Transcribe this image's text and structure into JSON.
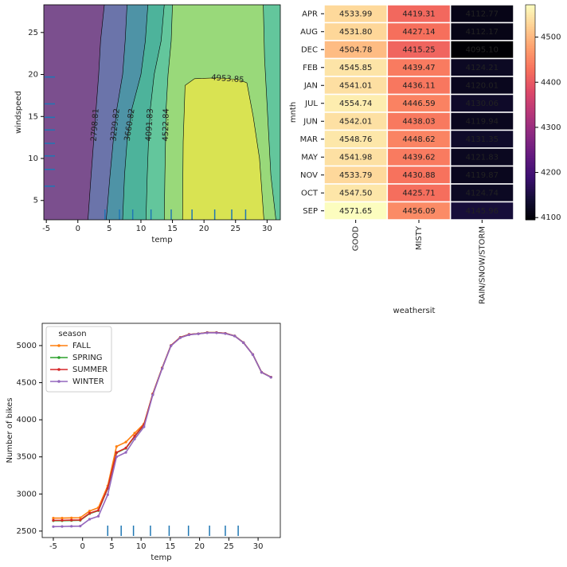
{
  "chart_data": [
    {
      "type": "contour",
      "xlabel": "temp",
      "ylabel": "windspeed",
      "xlim": [
        -5.4,
        32.1
      ],
      "ylim": [
        2.7,
        28.3
      ],
      "xticks": [
        -5,
        0,
        5,
        10,
        15,
        20,
        25,
        30
      ],
      "yticks": [
        5,
        10,
        15,
        20,
        25
      ],
      "base_color": "#7b4f8e",
      "lines": [
        {
          "level": 2798.81,
          "color": "#6b74aa",
          "temp": [
            4.2,
            3.6,
            3.3,
            2.9,
            2.5,
            2.1,
            1.6
          ],
          "windspeed": [
            28.3,
            24,
            20,
            16,
            12,
            8,
            2.7
          ]
        },
        {
          "level": 3229.82,
          "color": "#4e93a6",
          "temp": [
            7.8,
            7.5,
            7.1,
            6.2,
            5.6,
            5.1,
            4.5
          ],
          "windspeed": [
            28.3,
            24,
            20,
            16,
            12,
            8,
            2.7
          ]
        },
        {
          "level": 3660.82,
          "color": "#4db39b",
          "temp": [
            11.1,
            10.7,
            10.0,
            8.6,
            7.8,
            7.4,
            7.1
          ],
          "windspeed": [
            28.3,
            24,
            20,
            16,
            12,
            8,
            2.7
          ]
        },
        {
          "level": 4091.83,
          "color": "#63c69c",
          "temp": [
            13.7,
            13.2,
            12.1,
            11.5,
            11.2,
            11.0,
            10.8
          ],
          "windspeed": [
            28.3,
            24,
            20,
            16,
            12,
            8,
            2.7
          ]
        },
        {
          "level": 4522.84,
          "color": "#99d97a",
          "temp": [
            15.0,
            14.8,
            14.3,
            14.0,
            13.9,
            13.8,
            13.7
          ],
          "windspeed": [
            28.3,
            24,
            20,
            16,
            12,
            8,
            2.7
          ]
        },
        {
          "level": 4953.85,
          "color": "#d9e352",
          "temp": [
            16.6,
            16.7,
            17.0,
            18.5,
            22,
            25.5,
            26.8,
            27.8,
            28.8,
            29.5
          ],
          "windspeed": [
            2.7,
            12,
            18.7,
            19.5,
            19.6,
            19.4,
            19.0,
            15,
            10,
            2.7
          ]
        },
        {
          "level": 4522.84,
          "color": "#63c69c",
          "temp": [
            29.4,
            29.6,
            30.1,
            30.6,
            31.4
          ],
          "windspeed": [
            28.3,
            22,
            15,
            8,
            2.7
          ]
        }
      ],
      "rug_color": "#1f77b4",
      "rug_x": [
        4.3,
        6.6,
        8.7,
        11.6,
        14.8,
        18.1,
        21.7,
        24.4,
        26.6
      ],
      "rug_y": [
        19.7,
        16.5,
        14.9,
        13.4,
        11.8,
        10.3,
        8.7,
        6.7
      ]
    },
    {
      "type": "heatmap",
      "xlabel": "weathersit",
      "ylabel": "mnth",
      "cmap": "magma",
      "columns": [
        "GOOD",
        "MISTY",
        "RAIN/SNOW/STORM"
      ],
      "rows": [
        "APR",
        "AUG",
        "DEC",
        "FEB",
        "JAN",
        "JUL",
        "JUN",
        "MAR",
        "MAY",
        "NOV",
        "OCT",
        "SEP"
      ],
      "values": [
        [
          4533.99,
          4419.31,
          4112.77
        ],
        [
          4531.8,
          4427.14,
          4112.17
        ],
        [
          4504.78,
          4415.25,
          4095.1
        ],
        [
          4545.85,
          4439.47,
          4124.21
        ],
        [
          4541.01,
          4436.11,
          4120.01
        ],
        [
          4554.74,
          4446.59,
          4130.06
        ],
        [
          4542.01,
          4438.03,
          4119.94
        ],
        [
          4548.76,
          4448.62,
          4131.35
        ],
        [
          4541.98,
          4439.62,
          4121.83
        ],
        [
          4533.79,
          4430.88,
          4119.87
        ],
        [
          4547.5,
          4425.71,
          4124.74
        ],
        [
          4571.65,
          4456.09,
          4145.96
        ]
      ],
      "value_labels": [
        [
          "4533.99",
          "4419.31",
          "4112.77"
        ],
        [
          "4531.80",
          "4427.14",
          "4112.17"
        ],
        [
          "4504.78",
          "4415.25",
          "4095.10"
        ],
        [
          "4545.85",
          "4439.47",
          "4124.21"
        ],
        [
          "4541.01",
          "4436.11",
          "4120.01"
        ],
        [
          "4554.74",
          "4446.59",
          "4130.06"
        ],
        [
          "4542.01",
          "4438.03",
          "4119.94"
        ],
        [
          "4548.76",
          "4448.62",
          "4131.35"
        ],
        [
          "4541.98",
          "4439.62",
          "4121.83"
        ],
        [
          "4533.79",
          "4430.88",
          "4119.87"
        ],
        [
          "4547.50",
          "4425.71",
          "4124.74"
        ],
        [
          "4571.65",
          "4456.09",
          "4145.96"
        ]
      ],
      "clim": [
        4095.1,
        4571.65
      ],
      "colorbar_ticks": [
        4100,
        4200,
        4300,
        4400,
        4500
      ]
    },
    {
      "type": "line",
      "xlabel": "temp",
      "ylabel": "Number of bikes",
      "legend_title": "season",
      "legend": "upper left",
      "x": [
        -5.0,
        -3.5,
        -1.9,
        -0.4,
        1.2,
        2.7,
        4.3,
        5.8,
        7.4,
        8.9,
        10.5,
        12.0,
        13.6,
        15.1,
        16.7,
        18.2,
        19.8,
        21.3,
        22.9,
        24.4,
        26.0,
        27.5,
        29.1,
        30.6,
        32.2
      ],
      "series": [
        {
          "name": "FALL",
          "color": "#ff7f0e",
          "values": [
            2675,
            2675,
            2678,
            2680,
            2770,
            2815,
            3110,
            3640,
            3700,
            3820,
            3945,
            4350,
            4700,
            5000,
            5110,
            5150,
            5160,
            5175,
            5175,
            5165,
            5130,
            5040,
            4880,
            4640,
            4575
          ]
        },
        {
          "name": "SPRING",
          "color": "#2ca02c",
          "values": [
            2640,
            2640,
            2643,
            2645,
            2735,
            2775,
            3075,
            3555,
            3615,
            3775,
            3932,
            4344,
            4695,
            5000,
            5110,
            5150,
            5160,
            5175,
            5175,
            5165,
            5130,
            5040,
            4880,
            4640,
            4575
          ]
        },
        {
          "name": "SUMMER",
          "color": "#d62728",
          "values": [
            2645,
            2645,
            2648,
            2650,
            2740,
            2780,
            3080,
            3560,
            3620,
            3780,
            3935,
            4345,
            4695,
            5000,
            5110,
            5150,
            5160,
            5175,
            5175,
            5165,
            5130,
            5040,
            4880,
            4640,
            4575
          ]
        },
        {
          "name": "WINTER",
          "color": "#9467bd",
          "values": [
            2560,
            2562,
            2565,
            2567,
            2660,
            2700,
            2990,
            3500,
            3560,
            3740,
            3905,
            4335,
            4690,
            4995,
            5105,
            5145,
            5158,
            5172,
            5172,
            5162,
            5128,
            5038,
            4878,
            4638,
            4572
          ]
        }
      ],
      "xlim": [
        -6.9,
        33.8
      ],
      "ylim": [
        2413,
        5300
      ],
      "xticks": [
        -5,
        0,
        5,
        10,
        15,
        20,
        25,
        30
      ],
      "yticks": [
        2500,
        3000,
        3500,
        4000,
        4500,
        5000
      ],
      "rug_color": "#1f77b4",
      "rug_x": [
        4.3,
        6.6,
        8.7,
        11.6,
        14.8,
        18.1,
        21.7,
        24.4,
        26.6
      ]
    }
  ]
}
